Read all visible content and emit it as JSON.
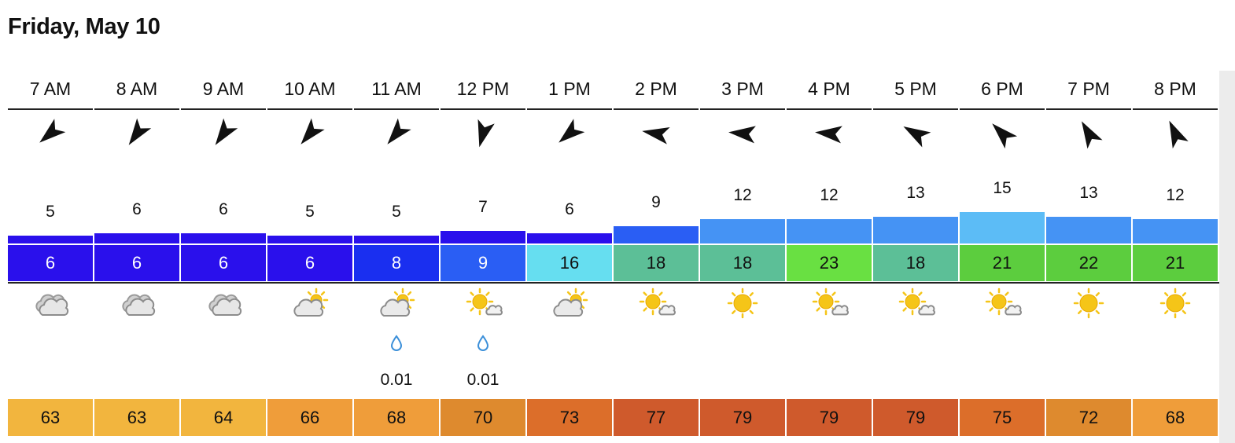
{
  "day": "Friday, May 10",
  "hours": [
    {
      "time": "7 AM",
      "wind_dir_deg": 230,
      "gust": "5",
      "wind": "6",
      "wind_color": "#2a10ec",
      "gust_color": "#2a10ec",
      "condition": "cloudy-icon",
      "precip": "",
      "temp": "63",
      "temp_color": "#f2b53e"
    },
    {
      "time": "8 AM",
      "wind_dir_deg": 215,
      "gust": "6",
      "wind": "6",
      "wind_color": "#2a10ec",
      "gust_color": "#2a10ec",
      "condition": "cloudy-icon",
      "precip": "",
      "temp": "63",
      "temp_color": "#f2b53e"
    },
    {
      "time": "9 AM",
      "wind_dir_deg": 215,
      "gust": "6",
      "wind": "6",
      "wind_color": "#2a10ec",
      "gust_color": "#2a10ec",
      "condition": "cloudy-icon",
      "precip": "",
      "temp": "64",
      "temp_color": "#f2b53e"
    },
    {
      "time": "10 AM",
      "wind_dir_deg": 220,
      "gust": "5",
      "wind": "6",
      "wind_color": "#2a10ec",
      "gust_color": "#2a10ec",
      "condition": "partly-cloudy-icon",
      "precip": "",
      "temp": "66",
      "temp_color": "#ef9d3a"
    },
    {
      "time": "11 AM",
      "wind_dir_deg": 220,
      "gust": "5",
      "wind": "8",
      "wind_color": "#1a2ff0",
      "gust_color": "#2a10ec",
      "condition": "partly-cloudy-icon",
      "precip": "0.01",
      "temp": "68",
      "temp_color": "#ef9d3a"
    },
    {
      "time": "12 PM",
      "wind_dir_deg": 195,
      "gust": "7",
      "wind": "9",
      "wind_color": "#2a5ef4",
      "gust_color": "#2a10ec",
      "condition": "mostly-sunny-icon",
      "precip": "0.01",
      "temp": "70",
      "temp_color": "#de8a2e"
    },
    {
      "time": "1 PM",
      "wind_dir_deg": 230,
      "gust": "6",
      "wind": "16",
      "wind_color": "#66def0",
      "gust_color": "#2a10ec",
      "condition": "partly-cloudy-icon",
      "precip": "",
      "temp": "73",
      "temp_color": "#dc6e2a"
    },
    {
      "time": "2 PM",
      "wind_dir_deg": 280,
      "gust": "9",
      "wind": "18",
      "wind_color": "#5cbf97",
      "gust_color": "#2a5ef4",
      "condition": "mostly-sunny-icon",
      "precip": "",
      "temp": "77",
      "temp_color": "#cf5a2c"
    },
    {
      "time": "3 PM",
      "wind_dir_deg": 275,
      "gust": "12",
      "wind": "18",
      "wind_color": "#5cbf97",
      "gust_color": "#4593f4",
      "condition": "sunny-icon",
      "precip": "",
      "temp": "79",
      "temp_color": "#cf5a2c"
    },
    {
      "time": "4 PM",
      "wind_dir_deg": 275,
      "gust": "12",
      "wind": "23",
      "wind_color": "#69e042",
      "gust_color": "#4593f4",
      "condition": "mostly-sunny-icon",
      "precip": "",
      "temp": "79",
      "temp_color": "#cf5a2c"
    },
    {
      "time": "5 PM",
      "wind_dir_deg": 300,
      "gust": "13",
      "wind": "18",
      "wind_color": "#5cbf97",
      "gust_color": "#4593f4",
      "condition": "mostly-sunny-icon",
      "precip": "",
      "temp": "79",
      "temp_color": "#cf5a2c"
    },
    {
      "time": "6 PM",
      "wind_dir_deg": 315,
      "gust": "15",
      "wind": "21",
      "wind_color": "#5ccd3e",
      "gust_color": "#5cbcf6",
      "condition": "mostly-sunny-icon",
      "precip": "",
      "temp": "75",
      "temp_color": "#dc6e2a"
    },
    {
      "time": "7 PM",
      "wind_dir_deg": 330,
      "gust": "13",
      "wind": "22",
      "wind_color": "#5ccd3e",
      "gust_color": "#4593f4",
      "condition": "sunny-icon",
      "precip": "",
      "temp": "72",
      "temp_color": "#de8a2e"
    },
    {
      "time": "8 PM",
      "wind_dir_deg": 335,
      "gust": "12",
      "wind": "21",
      "wind_color": "#5ccd3e",
      "gust_color": "#4593f4",
      "condition": "sunny-icon",
      "precip": "",
      "temp": "68",
      "temp_color": "#ef9d3a"
    }
  ],
  "edge_column": {
    "gust_color": "#4593f4",
    "wind_color": "#5ccd3e",
    "temp_color": "#f2b53e"
  }
}
